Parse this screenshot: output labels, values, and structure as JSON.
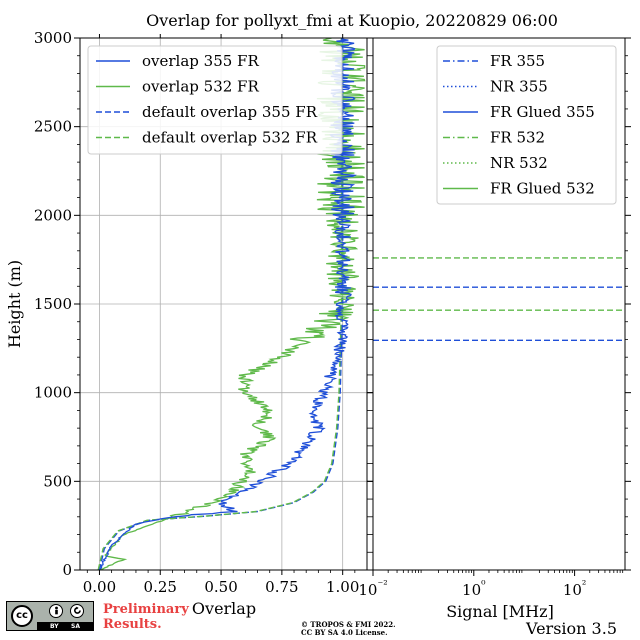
{
  "figure": {
    "title": "Overlap for pollyxt_fmi at Kuopio, 20220829 06:00",
    "footer_prelim_line1": "Preliminary",
    "footer_prelim_line2": "Results.",
    "footer_copyright_line1": "© TROPOS & FMI 2022.",
    "footer_copyright_line2": "CC BY SA 4.0 License.",
    "version": "Version 3.5",
    "license_badge": {
      "cc": "cc",
      "by": "BY",
      "sa": "SA",
      "by_icon": "person-icon",
      "sa_icon": "share-alike-icon"
    }
  },
  "colors": {
    "blue": "#1f4fd8",
    "green": "#5fb94a",
    "grid": "#b0b0b0"
  },
  "chart_data": [
    {
      "type": "line",
      "xlabel": "Overlap",
      "ylabel": "Height (m)",
      "xlim": [
        -0.08,
        1.1
      ],
      "ylim": [
        0,
        3000
      ],
      "x_ticks": [
        0.0,
        0.25,
        0.5,
        0.75,
        1.0
      ],
      "x_tick_labels": [
        "0.00",
        "0.25",
        "0.50",
        "0.75",
        "1.00"
      ],
      "y_ticks": [
        0,
        500,
        1000,
        1500,
        2000,
        2500,
        3000
      ],
      "y_tick_labels": [
        "0",
        "500",
        "1000",
        "1500",
        "2000",
        "2500",
        "3000"
      ],
      "grid": true,
      "legend_position": "top-right",
      "series": [
        {
          "name": "overlap 355 FR",
          "color": "#1f4fd8",
          "style": "solid",
          "kind": "measured355"
        },
        {
          "name": "overlap 532 FR",
          "color": "#5fb94a",
          "style": "solid",
          "kind": "measured532"
        },
        {
          "name": "default overlap 355 FR",
          "color": "#1f4fd8",
          "style": "dashed",
          "kind": "default",
          "points": [
            [
              0.0,
              0
            ],
            [
              0.02,
              120
            ],
            [
              0.08,
              220
            ],
            [
              0.2,
              280
            ],
            [
              0.45,
              305
            ],
            [
              0.65,
              330
            ],
            [
              0.8,
              380
            ],
            [
              0.88,
              440
            ],
            [
              0.93,
              500
            ],
            [
              0.96,
              600
            ],
            [
              0.98,
              800
            ],
            [
              0.99,
              1000
            ],
            [
              1.0,
              1500
            ],
            [
              1.0,
              3000
            ]
          ]
        },
        {
          "name": "default overlap 532 FR",
          "color": "#5fb94a",
          "style": "dashed",
          "kind": "default",
          "points": [
            [
              0.0,
              0
            ],
            [
              0.02,
              120
            ],
            [
              0.08,
              220
            ],
            [
              0.2,
              280
            ],
            [
              0.45,
              305
            ],
            [
              0.65,
              330
            ],
            [
              0.8,
              380
            ],
            [
              0.88,
              440
            ],
            [
              0.93,
              500
            ],
            [
              0.96,
              600
            ],
            [
              0.98,
              800
            ],
            [
              0.99,
              1000
            ],
            [
              1.0,
              1500
            ],
            [
              1.0,
              3000
            ]
          ]
        }
      ],
      "measured_355_key_points": [
        [
          0.0,
          0
        ],
        [
          0.05,
          140
        ],
        [
          0.15,
          260
        ],
        [
          0.3,
          300
        ],
        [
          0.55,
          330
        ],
        [
          0.5,
          380
        ],
        [
          0.6,
          450
        ],
        [
          0.7,
          530
        ],
        [
          0.78,
          600
        ],
        [
          0.85,
          700
        ],
        [
          0.9,
          800
        ],
        [
          0.88,
          900
        ],
        [
          0.92,
          1000
        ],
        [
          0.95,
          1100
        ],
        [
          0.98,
          1200
        ],
        [
          1.0,
          1300
        ],
        [
          1.0,
          3000
        ]
      ],
      "measured_532_key_points": [
        [
          0.0,
          0
        ],
        [
          0.1,
          60
        ],
        [
          0.02,
          80
        ],
        [
          0.1,
          200
        ],
        [
          0.3,
          300
        ],
        [
          0.45,
          370
        ],
        [
          0.55,
          450
        ],
        [
          0.62,
          550
        ],
        [
          0.6,
          650
        ],
        [
          0.7,
          750
        ],
        [
          0.65,
          800
        ],
        [
          0.7,
          900
        ],
        [
          0.6,
          1000
        ],
        [
          0.6,
          1100
        ],
        [
          0.75,
          1200
        ],
        [
          0.85,
          1300
        ],
        [
          0.95,
          1400
        ],
        [
          1.0,
          1500
        ],
        [
          1.0,
          3000
        ]
      ]
    },
    {
      "type": "line",
      "xlabel": "Signal [MHz]",
      "xscale": "log",
      "xlim": [
        0.01,
        1000
      ],
      "x_ticks": [
        0.01,
        1,
        100
      ],
      "x_tick_labels": [
        "10⁻²",
        "10⁰",
        "10²"
      ],
      "ylim": [
        0,
        3000
      ],
      "grid": false,
      "legend_position": "top-right",
      "series": [
        {
          "name": "FR 355",
          "color": "#1f4fd8",
          "style": "dashdot"
        },
        {
          "name": "NR 355",
          "color": "#1f4fd8",
          "style": "dotted"
        },
        {
          "name": "FR Glued 355",
          "color": "#1f4fd8",
          "style": "solid"
        },
        {
          "name": "FR 532",
          "color": "#5fb94a",
          "style": "dashdot"
        },
        {
          "name": "NR 532",
          "color": "#5fb94a",
          "style": "dotted"
        },
        {
          "name": "FR Glued 532",
          "color": "#5fb94a",
          "style": "solid"
        }
      ],
      "horizontal_lines": [
        {
          "y": 1760,
          "color": "#5fb94a",
          "style": "dashed"
        },
        {
          "y": 1595,
          "color": "#1f4fd8",
          "style": "dashed"
        },
        {
          "y": 1465,
          "color": "#5fb94a",
          "style": "dashed"
        },
        {
          "y": 1295,
          "color": "#1f4fd8",
          "style": "dashed"
        }
      ]
    }
  ]
}
